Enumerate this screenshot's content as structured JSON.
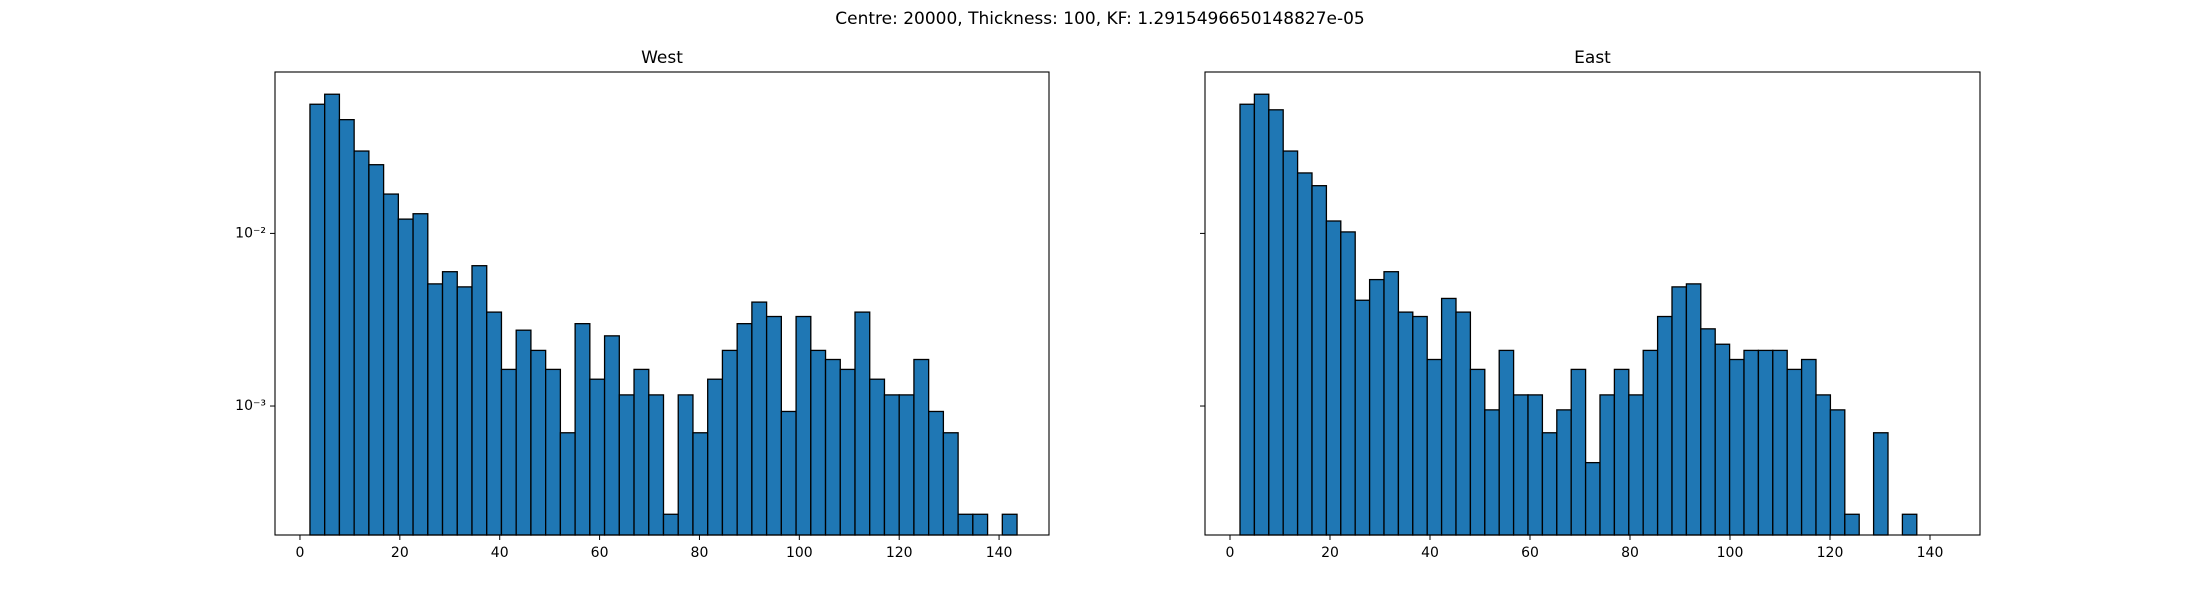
{
  "title": "Centre: 20000, Thickness: 100, KF: 1.2915496650148827e-05",
  "chart_data": [
    {
      "type": "histogram",
      "title": "West",
      "color": "#1f77b4",
      "edgecolor": "#000000",
      "log_y": true,
      "bins": [
        2,
        4.95,
        7.9,
        10.85,
        13.8,
        16.75,
        19.7,
        22.65,
        25.6,
        28.55,
        31.5,
        34.45,
        37.4,
        40.35,
        43.3,
        46.25,
        49.2,
        52.15,
        55.1,
        58.05,
        61,
        63.95,
        66.9,
        69.85,
        72.8,
        75.75,
        78.7,
        81.65,
        84.6,
        87.55,
        90.5,
        93.45,
        96.4,
        99.35,
        102.3,
        105.25,
        108.2,
        111.15,
        114.1,
        117.05,
        120,
        122.95,
        125.9,
        128.85,
        131.8,
        134.75,
        137.7,
        140.65,
        143.6
      ],
      "values": [
        0.056,
        0.064,
        0.0456,
        0.03,
        0.025,
        0.0169,
        0.0121,
        0.013,
        0.0051,
        0.006,
        0.0049,
        0.0065,
        0.0035,
        0.00163,
        0.00275,
        0.0021,
        0.00163,
        0.0007,
        0.003,
        0.00143,
        0.00255,
        0.00116,
        0.00163,
        0.00116,
        0.000236,
        0.00116,
        0.0007,
        0.00143,
        0.0021,
        0.003,
        0.004,
        0.0033,
        0.00093,
        0.0033,
        0.0021,
        0.00186,
        0.00163,
        0.0035,
        0.00143,
        0.00116,
        0.00116,
        0.00186,
        0.00093,
        0.0007,
        0.000236,
        0.000236,
        0,
        0.000236
      ],
      "xlim": [
        -5,
        150
      ],
      "xticks": [
        0,
        20,
        40,
        60,
        80,
        100,
        120,
        140
      ],
      "ylim": [
        0.000179,
        0.0861
      ],
      "yticks": [
        {
          "value": 0.01,
          "label": "10⁻²"
        },
        {
          "value": 0.001,
          "label": "10⁻³"
        }
      ]
    },
    {
      "type": "histogram",
      "title": "East",
      "color": "#1f77b4",
      "edgecolor": "#000000",
      "log_y": true,
      "bins": [
        2,
        4.88,
        7.76,
        10.64,
        13.52,
        16.4,
        19.28,
        22.16,
        25.04,
        27.92,
        30.8,
        33.68,
        36.56,
        39.44,
        42.32,
        45.2,
        48.08,
        50.96,
        53.84,
        56.72,
        59.6,
        62.48,
        65.36,
        68.24,
        71.12,
        74,
        76.88,
        79.76,
        82.64,
        85.52,
        88.4,
        91.28,
        94.16,
        97.04,
        99.92,
        102.8,
        105.68,
        108.56,
        111.44,
        114.32,
        117.2,
        120.08,
        122.96,
        125.84,
        128.72,
        131.6,
        134.48,
        137.36
      ],
      "values": [
        0.056,
        0.064,
        0.052,
        0.03,
        0.0224,
        0.0189,
        0.0118,
        0.0102,
        0.0041,
        0.0054,
        0.006,
        0.0035,
        0.0033,
        0.00186,
        0.0042,
        0.0035,
        0.00163,
        0.00095,
        0.0021,
        0.00116,
        0.00116,
        0.0007,
        0.00095,
        0.00163,
        0.00047,
        0.00116,
        0.00163,
        0.00116,
        0.0021,
        0.0033,
        0.0049,
        0.0051,
        0.0028,
        0.00228,
        0.00186,
        0.0021,
        0.0021,
        0.0021,
        0.00163,
        0.00186,
        0.00116,
        0.00095,
        0.000236,
        0,
        0.0007,
        0,
        0.000236
      ],
      "xlim": [
        -5,
        150
      ],
      "xticks": [
        0,
        20,
        40,
        60,
        80,
        100,
        120,
        140
      ],
      "ylim": [
        0.000179,
        0.0861
      ],
      "yticks": [
        {
          "value": 0.01
        },
        {
          "value": 0.001
        }
      ]
    }
  ]
}
